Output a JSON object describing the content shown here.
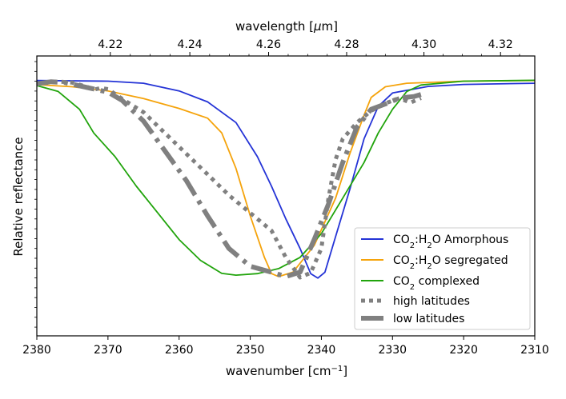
{
  "chart_data": {
    "type": "line",
    "xlabel": "wavenumber [cm$^{-1}$]",
    "xlabel_main": "wavenumber [cm",
    "xlabel_sup": "−1",
    "xlabel_end": "]",
    "x2label": "wavelength [μm]",
    "x2label_pre": "wavelength [",
    "x2label_mu": "μ",
    "x2label_post": "m]",
    "ylabel": "Relative reflectance",
    "xlim": [
      2380,
      2310
    ],
    "ylim": [
      0,
      1
    ],
    "xticks": [
      2380,
      2370,
      2360,
      2350,
      2340,
      2330,
      2320,
      2310
    ],
    "xtick_labels": [
      "2380",
      "2370",
      "2360",
      "2350",
      "2340",
      "2330",
      "2320",
      "2310"
    ],
    "x2ticks": [
      4.22,
      4.24,
      4.26,
      4.28,
      4.3,
      4.32
    ],
    "x2tick_labels": [
      "4.22",
      "4.24",
      "4.26",
      "4.28",
      "4.30",
      "4.32"
    ],
    "series": [
      {
        "name": "CO2:H2O Amorphous",
        "legend_main": "CO",
        "legend_sub": "2",
        "legend_mid": ":H",
        "legend_sub2": "2",
        "legend_rest": "O Amorphous",
        "color": "#2433d6",
        "style": "solid",
        "points": [
          [
            2380,
            0.897
          ],
          [
            2370,
            0.895
          ],
          [
            2365,
            0.888
          ],
          [
            2360,
            0.862
          ],
          [
            2356,
            0.825
          ],
          [
            2352,
            0.755
          ],
          [
            2349,
            0.64
          ],
          [
            2347,
            0.54
          ],
          [
            2345,
            0.43
          ],
          [
            2343,
            0.33
          ],
          [
            2341.5,
            0.245
          ],
          [
            2340.5,
            0.23
          ],
          [
            2339.5,
            0.25
          ],
          [
            2338,
            0.37
          ],
          [
            2336,
            0.53
          ],
          [
            2334,
            0.7
          ],
          [
            2332,
            0.81
          ],
          [
            2330,
            0.855
          ],
          [
            2325,
            0.877
          ],
          [
            2320,
            0.884
          ],
          [
            2310,
            0.888
          ]
        ]
      },
      {
        "name": "CO2:H2O segregated",
        "legend_main": "CO",
        "legend_sub": "2",
        "legend_mid": ":H",
        "legend_sub2": "2",
        "legend_rest": "O segregated",
        "color": "#f5a30b",
        "style": "solid",
        "points": [
          [
            2380,
            0.883
          ],
          [
            2375,
            0.876
          ],
          [
            2370,
            0.862
          ],
          [
            2365,
            0.836
          ],
          [
            2360,
            0.803
          ],
          [
            2356,
            0.77
          ],
          [
            2354,
            0.72
          ],
          [
            2352,
            0.6
          ],
          [
            2350,
            0.44
          ],
          [
            2348,
            0.3
          ],
          [
            2347,
            0.245
          ],
          [
            2346,
            0.235
          ],
          [
            2344,
            0.25
          ],
          [
            2341,
            0.34
          ],
          [
            2338,
            0.5
          ],
          [
            2336,
            0.65
          ],
          [
            2334,
            0.78
          ],
          [
            2333,
            0.84
          ],
          [
            2331,
            0.876
          ],
          [
            2328,
            0.888
          ],
          [
            2320,
            0.895
          ],
          [
            2310,
            0.897
          ]
        ]
      },
      {
        "name": "CO2 complexed",
        "legend_main": "CO",
        "legend_sub": "2",
        "legend_rest": " complexed",
        "color": "#21a40c",
        "style": "solid",
        "points": [
          [
            2380,
            0.88
          ],
          [
            2377,
            0.86
          ],
          [
            2374,
            0.8
          ],
          [
            2372,
            0.72
          ],
          [
            2369,
            0.64
          ],
          [
            2366,
            0.54
          ],
          [
            2363,
            0.45
          ],
          [
            2360,
            0.36
          ],
          [
            2357,
            0.29
          ],
          [
            2354,
            0.246
          ],
          [
            2352,
            0.24
          ],
          [
            2349,
            0.245
          ],
          [
            2346,
            0.262
          ],
          [
            2343,
            0.3
          ],
          [
            2340,
            0.38
          ],
          [
            2337,
            0.5
          ],
          [
            2334,
            0.62
          ],
          [
            2332,
            0.72
          ],
          [
            2330,
            0.8
          ],
          [
            2328,
            0.86
          ],
          [
            2326,
            0.882
          ],
          [
            2320,
            0.895
          ],
          [
            2310,
            0.898
          ]
        ]
      },
      {
        "name": "high latitudes",
        "legend_rest": "high latitudes",
        "color": "#808080",
        "style": "dotted",
        "points": [
          [
            2379,
            0.888
          ],
          [
            2377,
            0.894
          ],
          [
            2375,
            0.89
          ],
          [
            2373,
            0.876
          ],
          [
            2372,
            0.866
          ],
          [
            2371,
            0.872
          ],
          [
            2370,
            0.868
          ],
          [
            2368,
            0.835
          ],
          [
            2365,
            0.79
          ],
          [
            2362,
            0.72
          ],
          [
            2359,
            0.65
          ],
          [
            2356,
            0.58
          ],
          [
            2353,
            0.51
          ],
          [
            2350,
            0.45
          ],
          [
            2347,
            0.39
          ],
          [
            2345,
            0.3
          ],
          [
            2343,
            0.232
          ],
          [
            2341.5,
            0.248
          ],
          [
            2340,
            0.33
          ],
          [
            2339,
            0.5
          ],
          [
            2338,
            0.63
          ],
          [
            2337,
            0.7
          ],
          [
            2335,
            0.755
          ],
          [
            2333,
            0.795
          ],
          [
            2331,
            0.82
          ],
          [
            2329,
            0.838
          ],
          [
            2327.5,
            0.822
          ],
          [
            2326,
            0.838
          ]
        ]
      },
      {
        "name": "low latitudes",
        "legend_rest": "low latitudes",
        "color": "#808080",
        "style": "dashdot",
        "points": [
          [
            2380,
            0.886
          ],
          [
            2378,
            0.893
          ],
          [
            2376,
            0.89
          ],
          [
            2373,
            0.874
          ],
          [
            2370,
            0.858
          ],
          [
            2368,
            0.83
          ],
          [
            2365,
            0.76
          ],
          [
            2362,
            0.66
          ],
          [
            2359,
            0.56
          ],
          [
            2356,
            0.44
          ],
          [
            2353,
            0.33
          ],
          [
            2350,
            0.27
          ],
          [
            2347,
            0.25
          ],
          [
            2345,
            0.235
          ],
          [
            2343,
            0.25
          ],
          [
            2341,
            0.36
          ],
          [
            2339,
            0.48
          ],
          [
            2337,
            0.62
          ],
          [
            2335,
            0.74
          ],
          [
            2333,
            0.8
          ],
          [
            2331,
            0.818
          ],
          [
            2329,
            0.838
          ],
          [
            2327,
            0.843
          ],
          [
            2326,
            0.85
          ]
        ]
      }
    ]
  }
}
